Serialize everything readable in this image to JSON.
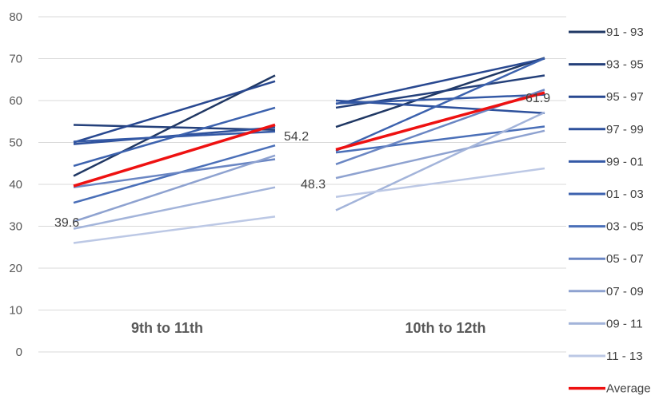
{
  "chart_data": {
    "type": "line",
    "ylim": [
      0,
      80
    ],
    "yticks": [
      0,
      10,
      20,
      30,
      40,
      50,
      60,
      70,
      80
    ],
    "grid": true,
    "legend_position": "right",
    "groups": [
      {
        "label": "9th to 11th"
      },
      {
        "label": "10th to 12th"
      }
    ],
    "series": [
      {
        "name": "91 - 93",
        "color": "#203864",
        "values": [
          [
            42.0,
            66.0
          ],
          [
            53.7,
            70.2
          ]
        ]
      },
      {
        "name": "93 - 95",
        "color": "#24407a",
        "values": [
          [
            54.2,
            53.0
          ],
          [
            58.3,
            66.0
          ]
        ]
      },
      {
        "name": "95 - 97",
        "color": "#284890",
        "values": [
          [
            50.0,
            64.6
          ],
          [
            59.2,
            70.0
          ]
        ]
      },
      {
        "name": "97 - 99",
        "color": "#2e519c",
        "values": [
          [
            49.6,
            53.6
          ],
          [
            60.0,
            57.0
          ]
        ]
      },
      {
        "name": "99 - 01",
        "color": "#3459a6",
        "values": [
          [
            50.2,
            52.6
          ],
          [
            59.3,
            61.4
          ]
        ]
      },
      {
        "name": "01 - 03",
        "color": "#3c62ae",
        "values": [
          [
            44.4,
            58.3
          ],
          [
            48.0,
            70.1
          ]
        ]
      },
      {
        "name": "03 - 05",
        "color": "#4a6fb8",
        "values": [
          [
            35.6,
            49.3
          ],
          [
            47.6,
            53.8
          ]
        ]
      },
      {
        "name": "05 - 07",
        "color": "#6a86c3",
        "values": [
          [
            39.3,
            46.0
          ],
          [
            44.8,
            62.6
          ]
        ]
      },
      {
        "name": "07 - 09",
        "color": "#8ea2d0",
        "values": [
          [
            31.1,
            46.9
          ],
          [
            41.5,
            52.8
          ]
        ]
      },
      {
        "name": "09 - 11",
        "color": "#a3b4da",
        "values": [
          [
            29.4,
            39.3
          ],
          [
            33.8,
            57.2
          ]
        ]
      },
      {
        "name": "11 - 13",
        "color": "#bcc8e5",
        "values": [
          [
            26.0,
            32.3
          ],
          [
            37.0,
            43.8
          ]
        ]
      },
      {
        "name": "Average",
        "color": "#ee1111",
        "values": [
          [
            39.6,
            54.2
          ],
          [
            48.3,
            61.9
          ]
        ]
      }
    ],
    "data_labels": [
      {
        "text": "39.6"
      },
      {
        "text": "54.2"
      },
      {
        "text": "48.3"
      },
      {
        "text": "61.9"
      }
    ]
  }
}
